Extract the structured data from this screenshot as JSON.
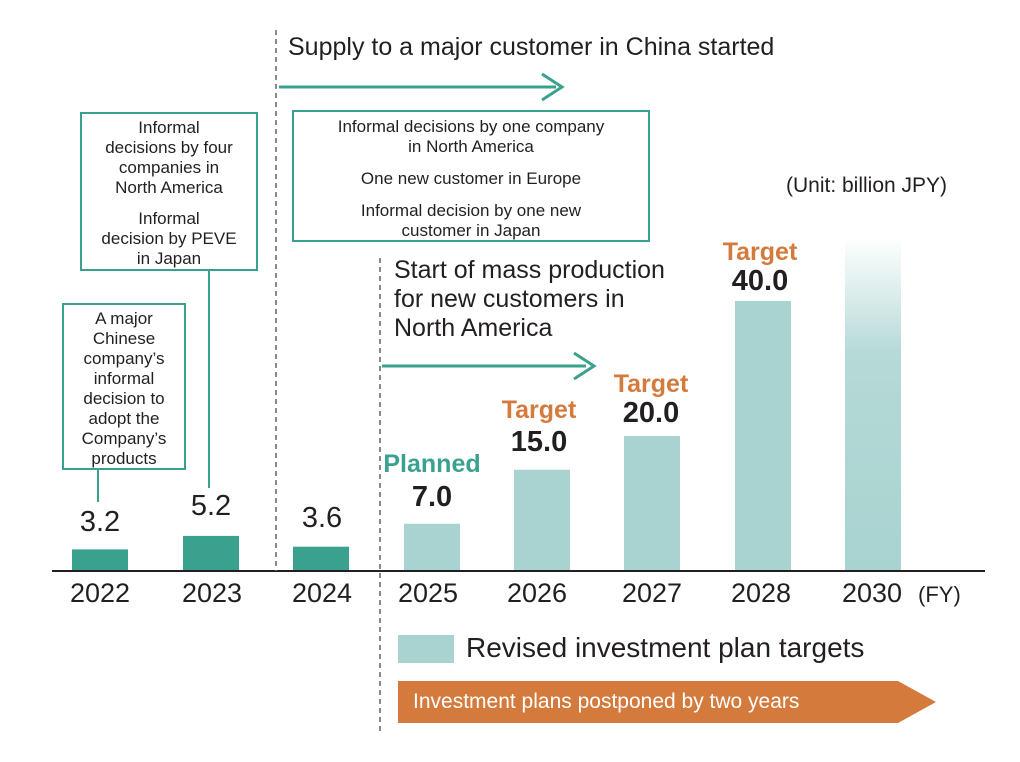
{
  "chart_data": {
    "type": "bar",
    "categories": [
      "2022",
      "2023",
      "2024",
      "2025",
      "2026",
      "2027",
      "2028",
      "2030"
    ],
    "values": [
      3.2,
      5.2,
      3.6,
      7.0,
      15.0,
      20.0,
      40.0,
      null
    ],
    "value_labels": [
      "3.2",
      "5.2",
      "3.6",
      "7.0",
      "15.0",
      "20.0",
      "40.0",
      ""
    ],
    "bar_status": [
      "actual",
      "actual",
      "actual",
      "planned",
      "target",
      "target",
      "target",
      "target"
    ],
    "status_labels": {
      "planned": "Planned",
      "target": "Target"
    },
    "x_unit": "(FY)",
    "unit_note": "(Unit: billion JPY)",
    "ylim": [
      0,
      50
    ],
    "grid": false,
    "colors": {
      "actual": "#3aa18f",
      "plan": "#a8d3d0",
      "target_text": "#d47a3c",
      "planned_text": "#3aa18f",
      "postponed": "#d47a3c"
    }
  },
  "legend": {
    "label": "Revised investment plan targets"
  },
  "postponed_banner": {
    "label": "Investment plans postponed by two years"
  },
  "annotations": {
    "china_supply": "Supply to a major customer in China started",
    "mass_production": [
      "Start of mass production",
      "for new customers in",
      "North America"
    ]
  },
  "boxes": {
    "box_2022": [
      "A major",
      "Chinese",
      "company’s",
      "informal",
      "decision to",
      "adopt the",
      "Company’s",
      "products"
    ],
    "box_2023": {
      "first": [
        "Informal",
        "decisions by four",
        "companies in",
        "North America"
      ],
      "second": [
        "Informal",
        "decision by PEVE",
        "in Japan"
      ]
    },
    "box_2024": {
      "first": [
        "Informal decisions by one company",
        "in North America"
      ],
      "second": [
        "One new customer in Europe"
      ],
      "third": [
        "Informal decision by one new",
        "customer in Japan"
      ]
    }
  }
}
